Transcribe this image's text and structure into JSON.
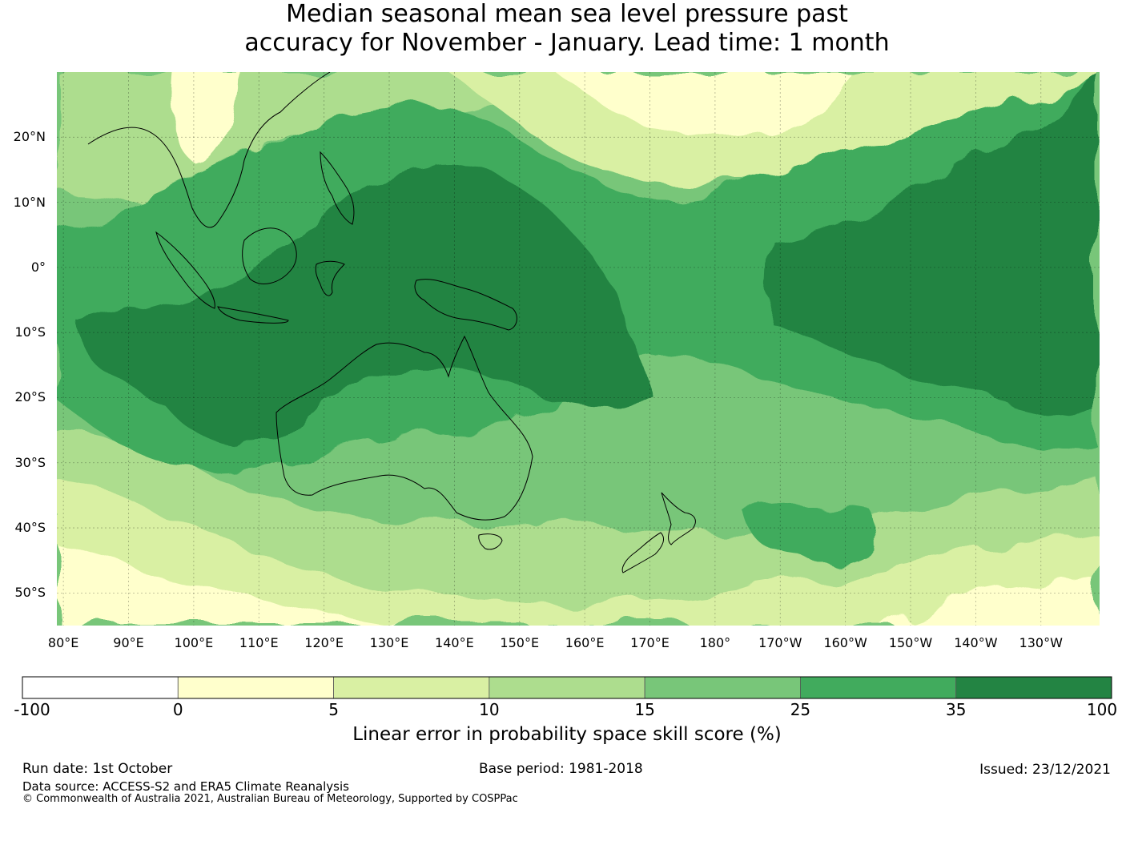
{
  "title": {
    "line1": "Median seasonal mean sea level pressure past",
    "line2": "accuracy for November - January. Lead time: 1 month"
  },
  "map": {
    "lat_labels": [
      "20°N",
      "10°N",
      "0°",
      "10°S",
      "20°S",
      "30°S",
      "40°S",
      "50°S"
    ],
    "lat_values": [
      20,
      10,
      0,
      -10,
      -20,
      -30,
      -40,
      -50
    ],
    "lon_labels": [
      "80°E",
      "90°E",
      "100°E",
      "110°E",
      "120°E",
      "130°E",
      "140°E",
      "150°E",
      "160°E",
      "170°E",
      "180°",
      "170°W",
      "160°W",
      "150°W",
      "140°W",
      "130°W"
    ],
    "lon_values": [
      80,
      90,
      100,
      110,
      120,
      130,
      140,
      150,
      160,
      170,
      180,
      190,
      200,
      210,
      220,
      230
    ],
    "lon_range": [
      79,
      239
    ],
    "lat_range": [
      -55,
      30
    ]
  },
  "colorbar": {
    "ticks": [
      "-100",
      "0",
      "5",
      "10",
      "15",
      "25",
      "35",
      "100"
    ],
    "colors": [
      "#ffffff",
      "#ffffcc",
      "#d9f0a3",
      "#addd8e",
      "#78c679",
      "#41ab5d",
      "#238443"
    ],
    "label": "Linear error in probability space skill score (%)"
  },
  "footer": {
    "run_date": "Run date: 1st October",
    "base_period": "Base period: 1981-2018",
    "issued": "Issued: 23/12/2021",
    "data_source": "Data source: ACCESS-S2 and ERA5 Climate Reanalysis",
    "copyright": "© Commonwealth of Australia 2021, Australian Bureau of Meteorology, Supported by COSPPac"
  }
}
